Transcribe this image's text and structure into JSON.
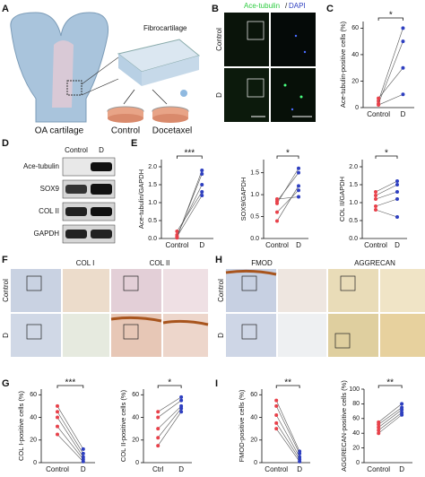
{
  "panel_letters": [
    "A",
    "B",
    "C",
    "D",
    "E",
    "F",
    "G",
    "H",
    "I"
  ],
  "panel_a": {
    "fibrocartilage": "Fibrocartilage",
    "oa": "OA cartilage",
    "control": "Control",
    "docetaxel": "Docetaxel"
  },
  "panel_b": {
    "title_parts": [
      "Ace-tubulin",
      "/",
      "DAPI"
    ],
    "rows": [
      "Control",
      "D"
    ]
  },
  "panel_d": {
    "columns": [
      "Control",
      "D"
    ],
    "rows": [
      "Ace-tubulin",
      "SOX9",
      "COL II",
      "GAPDH"
    ]
  },
  "panel_f": {
    "columns": [
      "COL I",
      "COL II"
    ],
    "rows": [
      "Control",
      "D"
    ]
  },
  "panel_h": {
    "columns": [
      "FMOD",
      "AGGRECAN"
    ],
    "rows": [
      "Control",
      "D"
    ]
  },
  "chart_data": [
    {
      "type": "paired",
      "ylabel": "Ace-tubulin-positive cells (%)",
      "categories": [
        "Control",
        "D"
      ],
      "point_colors": [
        "#e8414a",
        "#2e3fc0"
      ],
      "annotation": "*",
      "ylim": [
        0,
        65
      ],
      "yticks": [
        0,
        20,
        40,
        60
      ],
      "series": [
        {
          "values": [
            5,
            60
          ]
        },
        {
          "values": [
            3,
            50
          ]
        },
        {
          "values": [
            7,
            30
          ]
        },
        {
          "values": [
            2,
            10
          ]
        }
      ]
    },
    {
      "type": "paired",
      "ylabel": "Ace-tubulin/GAPDH",
      "categories": [
        "Control",
        "D"
      ],
      "point_colors": [
        "#e8414a",
        "#2e3fc0"
      ],
      "annotation": "***",
      "ylim": [
        0,
        2.2
      ],
      "yticks": [
        {
          "value": 0,
          "label": "0.0"
        },
        {
          "value": 0.5,
          "label": "0.5"
        },
        {
          "value": 1,
          "label": "1.0"
        },
        {
          "value": 1.5,
          "label": "1.5"
        },
        {
          "value": 2,
          "label": "2.0"
        }
      ],
      "series": [
        {
          "values": [
            0.02,
            1.9
          ]
        },
        {
          "values": [
            0.05,
            1.8
          ]
        },
        {
          "values": [
            0.1,
            1.5
          ]
        },
        {
          "values": [
            0.2,
            1.3
          ]
        },
        {
          "values": [
            0.05,
            1.2
          ]
        }
      ]
    },
    {
      "type": "paired",
      "ylabel": "SOX9/GAPDH",
      "categories": [
        "Control",
        "D"
      ],
      "point_colors": [
        "#e8414a",
        "#2e3fc0"
      ],
      "annotation": "*",
      "ylim": [
        0,
        1.8
      ],
      "yticks": [
        {
          "value": 0,
          "label": "0.0"
        },
        {
          "value": 0.5,
          "label": "0.5"
        },
        {
          "value": 1,
          "label": "1.0"
        },
        {
          "value": 1.5,
          "label": "1.5"
        }
      ],
      "series": [
        {
          "values": [
            0.4,
            1.2
          ]
        },
        {
          "values": [
            0.8,
            1.6
          ]
        },
        {
          "values": [
            0.85,
            1.5
          ]
        },
        {
          "values": [
            0.9,
            0.95
          ]
        },
        {
          "values": [
            0.6,
            1.1
          ]
        }
      ]
    },
    {
      "type": "paired",
      "ylabel": "COL II/GAPDH",
      "categories": [
        "Control",
        "D"
      ],
      "point_colors": [
        "#e8414a",
        "#2e3fc0"
      ],
      "annotation": "*",
      "ylim": [
        0,
        2.2
      ],
      "yticks": [
        {
          "value": 0,
          "label": "0.0"
        },
        {
          "value": 0.5,
          "label": "0.5"
        },
        {
          "value": 1,
          "label": "1.0"
        },
        {
          "value": 1.5,
          "label": "1.5"
        },
        {
          "value": 2,
          "label": "2.0"
        }
      ],
      "series": [
        {
          "values": [
            1.3,
            1.6
          ]
        },
        {
          "values": [
            1.2,
            1.5
          ]
        },
        {
          "values": [
            1.1,
            1.3
          ]
        },
        {
          "values": [
            0.9,
            1.1
          ]
        },
        {
          "values": [
            0.8,
            0.6
          ]
        }
      ]
    },
    {
      "type": "paired",
      "ylabel": "COL I-positive cells (%)",
      "categories": [
        "Control",
        "D"
      ],
      "point_colors": [
        "#e8414a",
        "#2e3fc0"
      ],
      "annotation": "***",
      "ylim": [
        0,
        65
      ],
      "yticks": [
        0,
        20,
        40,
        60
      ],
      "series": [
        {
          "values": [
            50,
            12
          ]
        },
        {
          "values": [
            45,
            8
          ]
        },
        {
          "values": [
            40,
            5
          ]
        },
        {
          "values": [
            32,
            3
          ]
        },
        {
          "values": [
            25,
            1
          ]
        }
      ]
    },
    {
      "type": "paired",
      "ylabel": "COL II-positive cells (%)",
      "categories": [
        "Ctrl",
        "D"
      ],
      "point_colors": [
        "#e8414a",
        "#2e3fc0"
      ],
      "annotation": "*",
      "ylim": [
        0,
        65
      ],
      "yticks": [
        0,
        20,
        40,
        60
      ],
      "series": [
        {
          "values": [
            45,
            58
          ]
        },
        {
          "values": [
            40,
            55
          ]
        },
        {
          "values": [
            30,
            50
          ]
        },
        {
          "values": [
            22,
            48
          ]
        },
        {
          "values": [
            15,
            45
          ]
        }
      ]
    },
    {
      "type": "paired",
      "ylabel": "FMOD-positive cells (%)",
      "categories": [
        "Control",
        "D"
      ],
      "point_colors": [
        "#e8414a",
        "#2e3fc0"
      ],
      "annotation": "**",
      "ylim": [
        0,
        65
      ],
      "yticks": [
        0,
        20,
        40,
        60
      ],
      "series": [
        {
          "values": [
            55,
            10
          ]
        },
        {
          "values": [
            50,
            8
          ]
        },
        {
          "values": [
            42,
            5
          ]
        },
        {
          "values": [
            35,
            3
          ]
        },
        {
          "values": [
            30,
            1
          ]
        }
      ]
    },
    {
      "type": "paired",
      "ylabel": "AGGRECAN-positive cells (%)",
      "categories": [
        "Control",
        "D"
      ],
      "point_colors": [
        "#e8414a",
        "#2e3fc0"
      ],
      "annotation": "**",
      "ylim": [
        0,
        100
      ],
      "yticks": [
        0,
        20,
        40,
        60,
        80,
        100
      ],
      "series": [
        {
          "values": [
            55,
            80
          ]
        },
        {
          "values": [
            52,
            75
          ]
        },
        {
          "values": [
            48,
            72
          ]
        },
        {
          "values": [
            44,
            68
          ]
        },
        {
          "values": [
            40,
            65
          ]
        }
      ]
    }
  ]
}
